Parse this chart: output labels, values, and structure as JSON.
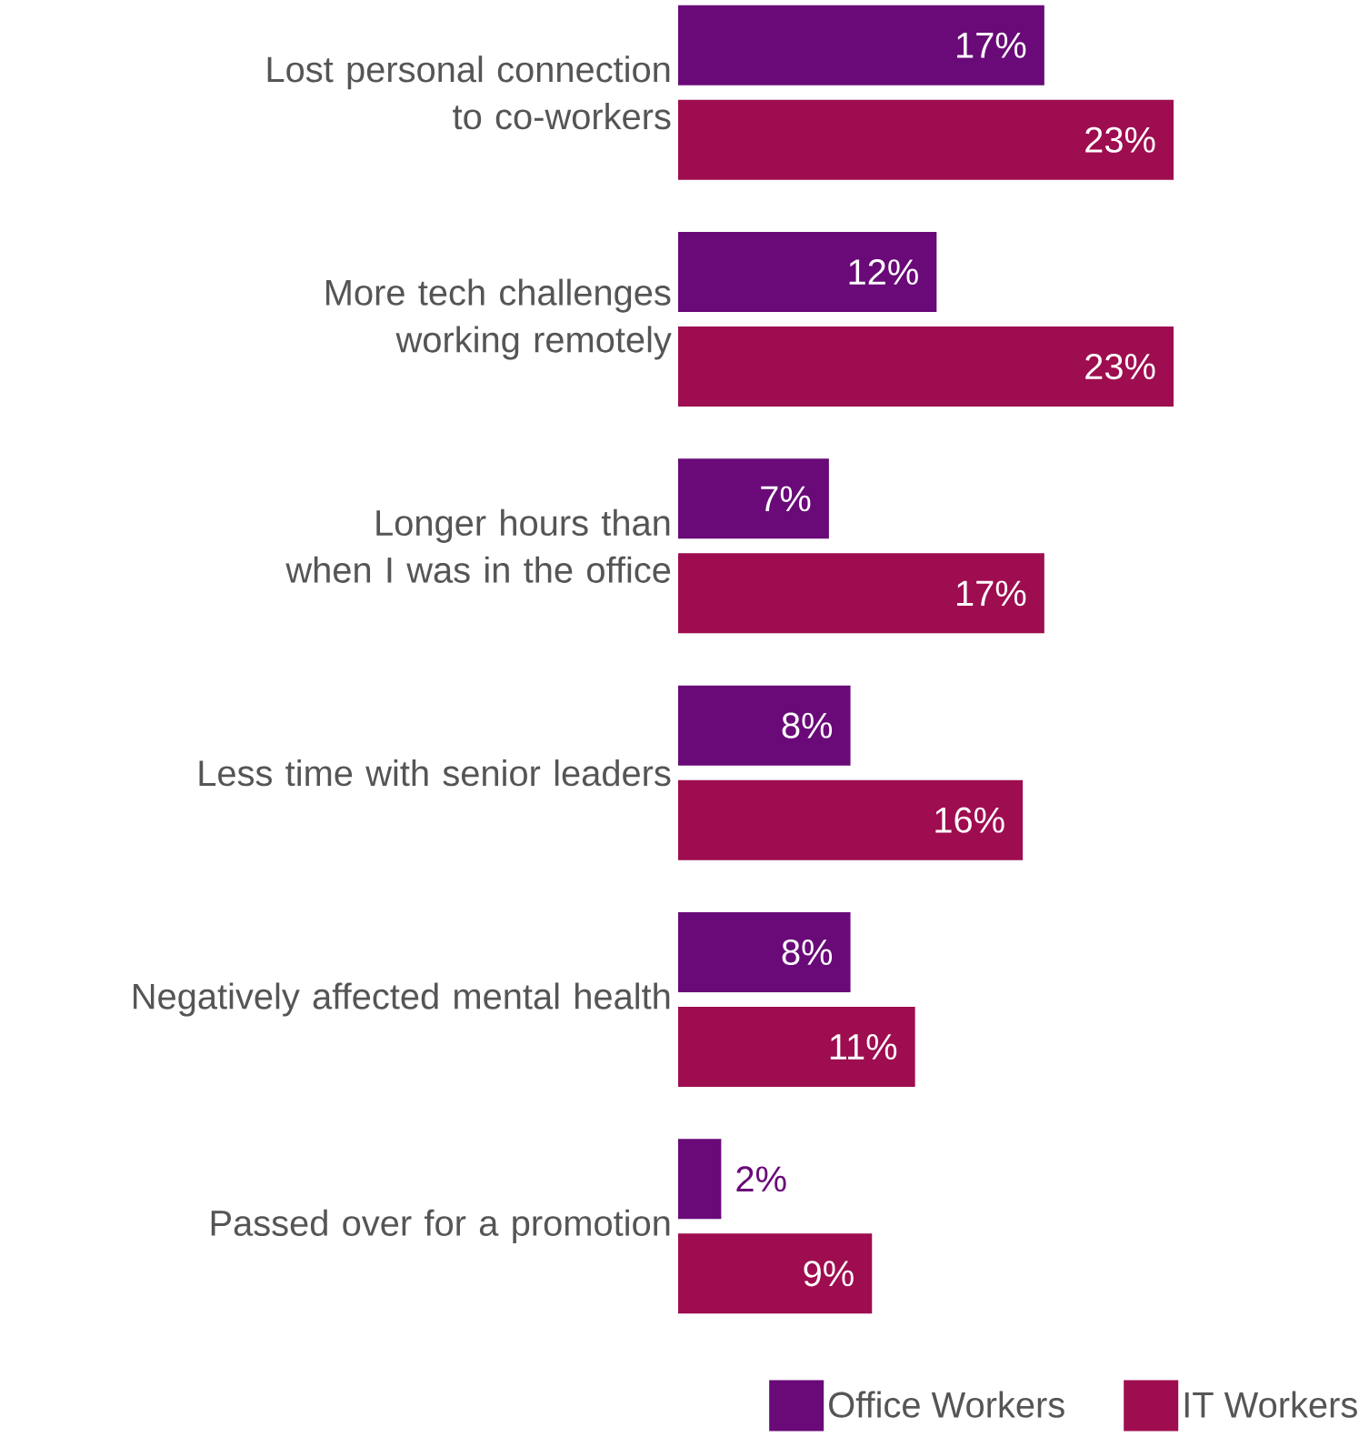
{
  "chart_data": {
    "type": "bar",
    "orientation": "horizontal",
    "categories": [
      "Lost personal connection to co-workers",
      "More tech challenges working remotely",
      "Longer hours than when I was in the office",
      "Less time with senior leaders",
      "Negatively affected mental health",
      "Passed over for a promotion"
    ],
    "series": [
      {
        "name": "Office Workers",
        "color": "#690a78",
        "values": [
          17,
          12,
          7,
          8,
          8,
          2
        ],
        "value_labels": [
          "17%",
          "12%",
          "7%",
          "8%",
          "8%",
          "2%"
        ]
      },
      {
        "name": "IT Workers",
        "color": "#9e0d4f",
        "values": [
          23,
          23,
          17,
          16,
          11,
          9
        ],
        "value_labels": [
          "23%",
          "23%",
          "17%",
          "16%",
          "11%",
          "9%"
        ]
      }
    ],
    "legend": "bottom right"
  }
}
